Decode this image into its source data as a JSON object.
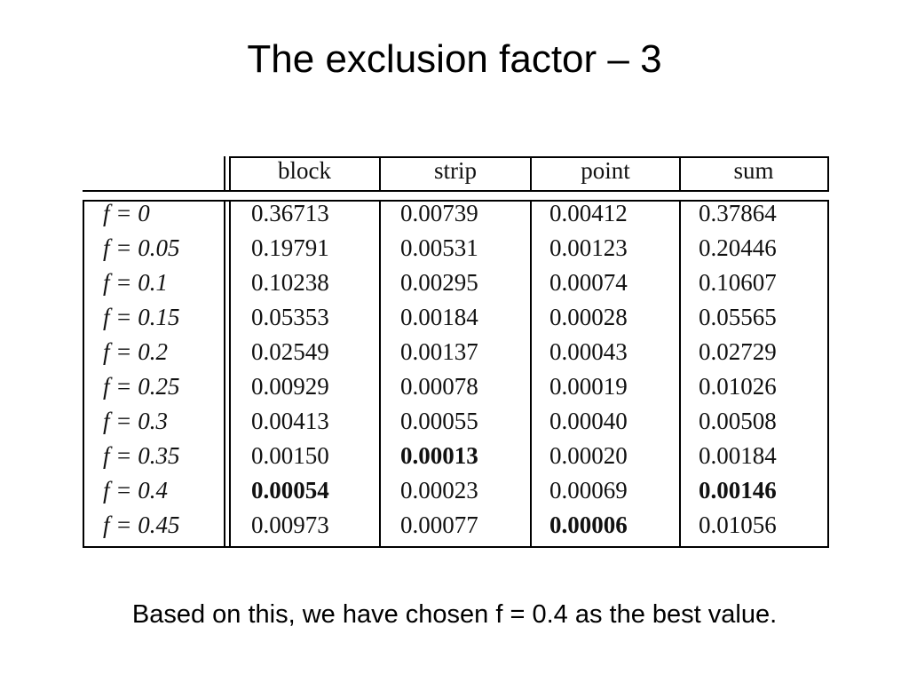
{
  "title": "The exclusion factor – 3",
  "table": {
    "header": [
      "block",
      "strip",
      "point",
      "sum"
    ],
    "rows": [
      [
        "f = 0",
        "0.36713",
        "0.00739",
        "0.00412",
        "0.37864"
      ],
      [
        "f = 0.05",
        "0.19791",
        "0.00531",
        "0.00123",
        "0.20446"
      ],
      [
        "f = 0.1",
        "0.10238",
        "0.00295",
        "0.00074",
        "0.10607"
      ],
      [
        "f = 0.15",
        "0.05353",
        "0.00184",
        "0.00028",
        "0.05565"
      ],
      [
        "f = 0.2",
        "0.02549",
        "0.00137",
        "0.00043",
        "0.02729"
      ],
      [
        "f = 0.25",
        "0.00929",
        "0.00078",
        "0.00019",
        "0.01026"
      ],
      [
        "f = 0.3",
        "0.00413",
        "0.00055",
        "0.00040",
        "0.00508"
      ],
      [
        "f = 0.35",
        "0.00150",
        "0.00013",
        "0.00020",
        "0.00184"
      ],
      [
        "f = 0.4",
        "0.00054",
        "0.00023",
        "0.00069",
        "0.00146"
      ],
      [
        "f = 0.45",
        "0.00973",
        "0.00077",
        "0.00006",
        "0.01056"
      ]
    ],
    "bold_cells": [
      [
        7,
        2
      ],
      [
        8,
        1
      ],
      [
        8,
        4
      ],
      [
        9,
        3
      ]
    ]
  },
  "caption": "Based on this, we have chosen f = 0.4 as the best value."
}
